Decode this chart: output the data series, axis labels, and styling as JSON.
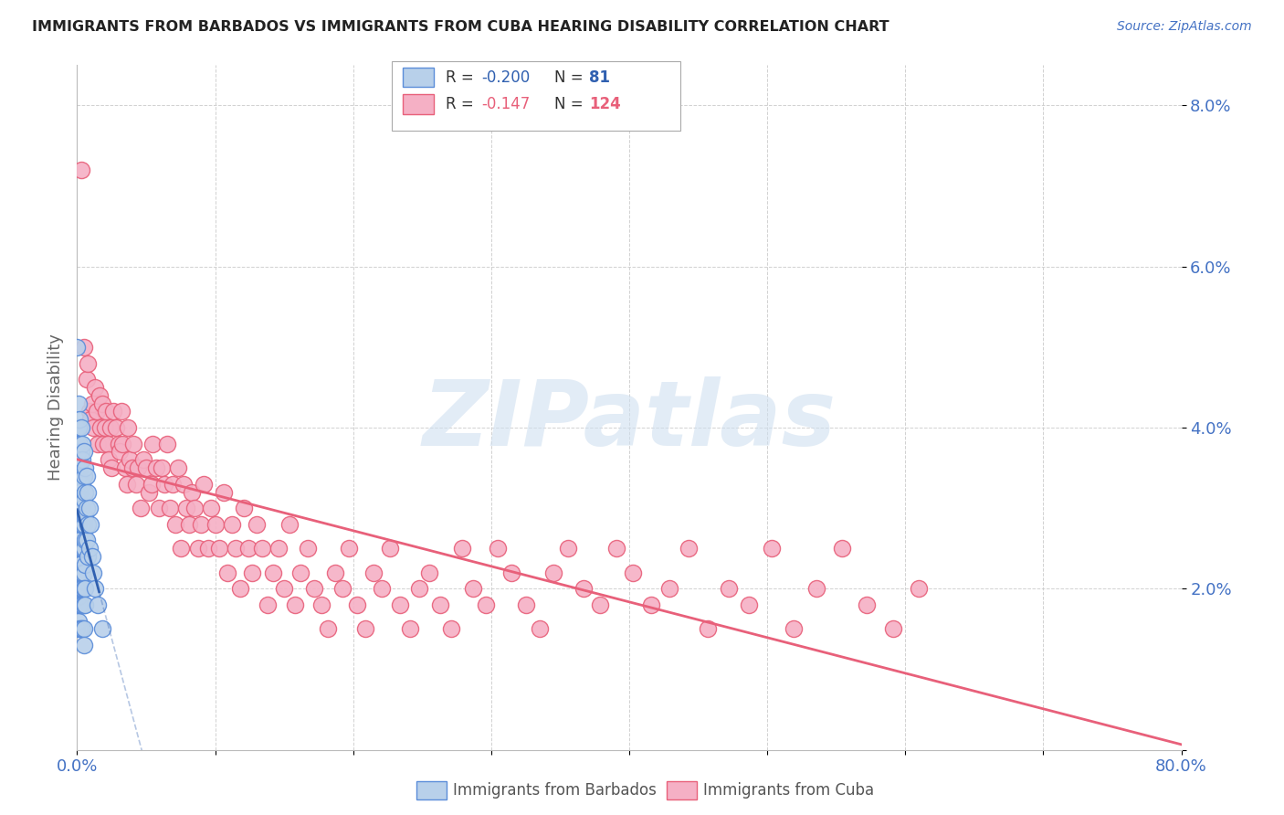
{
  "title": "IMMIGRANTS FROM BARBADOS VS IMMIGRANTS FROM CUBA HEARING DISABILITY CORRELATION CHART",
  "source": "Source: ZipAtlas.com",
  "ylabel": "Hearing Disability",
  "watermark": "ZIPatlas",
  "barbados": {
    "R": -0.2,
    "N": 81,
    "color": "#b8d0ea",
    "edge_color": "#5b8dd9",
    "line_color": "#3060b0",
    "label": "Immigrants from Barbados",
    "x": [
      0.0,
      0.0,
      0.0,
      0.0,
      0.0,
      0.0,
      0.0,
      0.0,
      0.0,
      0.0,
      0.001,
      0.001,
      0.001,
      0.001,
      0.001,
      0.001,
      0.001,
      0.001,
      0.001,
      0.001,
      0.002,
      0.002,
      0.002,
      0.002,
      0.002,
      0.002,
      0.002,
      0.002,
      0.002,
      0.002,
      0.003,
      0.003,
      0.003,
      0.003,
      0.003,
      0.003,
      0.003,
      0.003,
      0.003,
      0.003,
      0.004,
      0.004,
      0.004,
      0.004,
      0.004,
      0.004,
      0.004,
      0.004,
      0.004,
      0.004,
      0.005,
      0.005,
      0.005,
      0.005,
      0.005,
      0.005,
      0.005,
      0.005,
      0.005,
      0.005,
      0.006,
      0.006,
      0.006,
      0.006,
      0.006,
      0.006,
      0.006,
      0.007,
      0.007,
      0.007,
      0.008,
      0.008,
      0.008,
      0.009,
      0.009,
      0.01,
      0.011,
      0.012,
      0.013,
      0.015,
      0.018
    ],
    "y": [
      0.05,
      0.04,
      0.038,
      0.035,
      0.032,
      0.03,
      0.028,
      0.025,
      0.02,
      0.015,
      0.043,
      0.04,
      0.037,
      0.034,
      0.031,
      0.028,
      0.025,
      0.022,
      0.019,
      0.016,
      0.041,
      0.038,
      0.035,
      0.032,
      0.029,
      0.026,
      0.023,
      0.02,
      0.018,
      0.015,
      0.04,
      0.037,
      0.034,
      0.031,
      0.028,
      0.025,
      0.022,
      0.02,
      0.018,
      0.015,
      0.038,
      0.036,
      0.033,
      0.03,
      0.028,
      0.025,
      0.022,
      0.02,
      0.018,
      0.015,
      0.037,
      0.034,
      0.031,
      0.028,
      0.025,
      0.022,
      0.02,
      0.018,
      0.015,
      0.013,
      0.035,
      0.032,
      0.029,
      0.026,
      0.023,
      0.02,
      0.018,
      0.034,
      0.03,
      0.026,
      0.032,
      0.028,
      0.024,
      0.03,
      0.025,
      0.028,
      0.024,
      0.022,
      0.02,
      0.018,
      0.015
    ]
  },
  "cuba": {
    "R": -0.147,
    "N": 124,
    "color": "#f5b0c5",
    "edge_color": "#e8607a",
    "line_color": "#e8607a",
    "label": "Immigrants from Cuba",
    "x": [
      0.003,
      0.005,
      0.007,
      0.008,
      0.009,
      0.01,
      0.011,
      0.012,
      0.013,
      0.014,
      0.015,
      0.016,
      0.017,
      0.018,
      0.019,
      0.02,
      0.021,
      0.022,
      0.023,
      0.024,
      0.025,
      0.026,
      0.028,
      0.03,
      0.031,
      0.032,
      0.033,
      0.035,
      0.036,
      0.037,
      0.038,
      0.04,
      0.041,
      0.043,
      0.044,
      0.046,
      0.048,
      0.05,
      0.052,
      0.054,
      0.055,
      0.057,
      0.059,
      0.061,
      0.063,
      0.065,
      0.067,
      0.069,
      0.071,
      0.073,
      0.075,
      0.077,
      0.079,
      0.081,
      0.083,
      0.085,
      0.088,
      0.09,
      0.092,
      0.095,
      0.097,
      0.1,
      0.103,
      0.106,
      0.109,
      0.112,
      0.115,
      0.118,
      0.121,
      0.124,
      0.127,
      0.13,
      0.134,
      0.138,
      0.142,
      0.146,
      0.15,
      0.154,
      0.158,
      0.162,
      0.167,
      0.172,
      0.177,
      0.182,
      0.187,
      0.192,
      0.197,
      0.203,
      0.209,
      0.215,
      0.221,
      0.227,
      0.234,
      0.241,
      0.248,
      0.255,
      0.263,
      0.271,
      0.279,
      0.287,
      0.296,
      0.305,
      0.315,
      0.325,
      0.335,
      0.345,
      0.356,
      0.367,
      0.379,
      0.391,
      0.403,
      0.416,
      0.429,
      0.443,
      0.457,
      0.472,
      0.487,
      0.503,
      0.519,
      0.536,
      0.554,
      0.572,
      0.591,
      0.61
    ],
    "y": [
      0.072,
      0.05,
      0.046,
      0.048,
      0.042,
      0.041,
      0.043,
      0.04,
      0.045,
      0.042,
      0.038,
      0.044,
      0.04,
      0.043,
      0.038,
      0.04,
      0.042,
      0.038,
      0.036,
      0.04,
      0.035,
      0.042,
      0.04,
      0.038,
      0.037,
      0.042,
      0.038,
      0.035,
      0.033,
      0.04,
      0.036,
      0.035,
      0.038,
      0.033,
      0.035,
      0.03,
      0.036,
      0.035,
      0.032,
      0.033,
      0.038,
      0.035,
      0.03,
      0.035,
      0.033,
      0.038,
      0.03,
      0.033,
      0.028,
      0.035,
      0.025,
      0.033,
      0.03,
      0.028,
      0.032,
      0.03,
      0.025,
      0.028,
      0.033,
      0.025,
      0.03,
      0.028,
      0.025,
      0.032,
      0.022,
      0.028,
      0.025,
      0.02,
      0.03,
      0.025,
      0.022,
      0.028,
      0.025,
      0.018,
      0.022,
      0.025,
      0.02,
      0.028,
      0.018,
      0.022,
      0.025,
      0.02,
      0.018,
      0.015,
      0.022,
      0.02,
      0.025,
      0.018,
      0.015,
      0.022,
      0.02,
      0.025,
      0.018,
      0.015,
      0.02,
      0.022,
      0.018,
      0.015,
      0.025,
      0.02,
      0.018,
      0.025,
      0.022,
      0.018,
      0.015,
      0.022,
      0.025,
      0.02,
      0.018,
      0.025,
      0.022,
      0.018,
      0.02,
      0.025,
      0.015,
      0.02,
      0.018,
      0.025,
      0.015,
      0.02,
      0.025,
      0.018,
      0.015,
      0.02
    ]
  },
  "ylim": [
    0.0,
    0.085
  ],
  "xlim": [
    0.0,
    0.8
  ],
  "yticks": [
    0.0,
    0.02,
    0.04,
    0.06,
    0.08
  ],
  "ytick_labels": [
    "",
    "2.0%",
    "4.0%",
    "6.0%",
    "8.0%"
  ],
  "xticks": [
    0.0,
    0.1,
    0.2,
    0.3,
    0.4,
    0.5,
    0.6,
    0.7,
    0.8
  ],
  "xtick_labels": [
    "0.0%",
    "",
    "",
    "",
    "",
    "",
    "",
    "",
    "80.0%"
  ],
  "title_color": "#222222",
  "axis_color": "#4472c4",
  "grid_color": "#cccccc",
  "background_color": "#ffffff"
}
